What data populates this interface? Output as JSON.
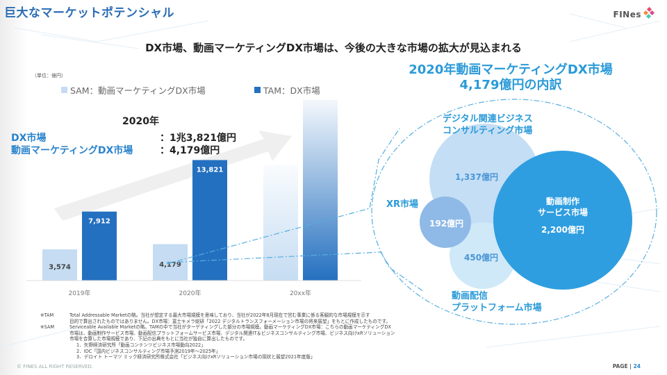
{
  "page": {
    "title": "巨大なマーケットポテンシャル",
    "logo_text": "FINes",
    "headline": "DX市場、動画マーケティングDX市場は、今後の大きな市場の拡大が見込まれる",
    "unit": "（単位：億円）",
    "copyright": "© FINES ALL RIGHT RESERVED.",
    "page_label": "PAGE | ",
    "page_number": "24"
  },
  "summary": {
    "year": "2020年",
    "rows": [
      {
        "label": "DX市場",
        "value": "：1兆3,821億円"
      },
      {
        "label": "動画マーケティングDX市場",
        "value": "：4,179億円"
      }
    ]
  },
  "colors": {
    "sam": "#c5dcf2",
    "tam": "#2470c0",
    "accent": "#2a9ad8",
    "bubble_main": "#2f9ee0",
    "bubble_consulting": "#c4def5",
    "bubble_xr": "#8fb9e6",
    "bubble_platform": "#cfe9f8"
  },
  "chart_data": [
    {
      "type": "bar",
      "title": "",
      "xlabel": "",
      "ylabel": "億円",
      "categories": [
        "2019年",
        "2020年",
        "20xx年"
      ],
      "series": [
        {
          "name": "SAM：動画マーケティングDX市場",
          "values": [
            3574,
            4179,
            null
          ],
          "labels": [
            "3,574",
            "4,179",
            ""
          ]
        },
        {
          "name": "TAM：DX市場",
          "values": [
            7912,
            13821,
            null
          ],
          "labels": [
            "7,912",
            "13,821",
            ""
          ]
        }
      ],
      "projected_category": "20xx年",
      "ylim": [
        0,
        18000
      ],
      "grid": false,
      "legend": "top"
    },
    {
      "type": "bubble",
      "title": "2020年動画マーケティングDX市場 4,179億円の内訳",
      "title_lines": [
        "2020年動画マーケティングDX市場",
        "4,179億円の内訳"
      ],
      "total": 4179,
      "segments": [
        {
          "name": "動画制作サービス市場",
          "name_lines": [
            "動画制作",
            "サービス市場"
          ],
          "value": 2200,
          "label": "2,200億円"
        },
        {
          "name": "デジタル関連ビジネスコンサルティング市場",
          "name_lines": [
            "デジタル関連ビジネス",
            "コンサルティング市場"
          ],
          "value": 1337,
          "label": "1,337億円"
        },
        {
          "name": "動画配信プラットフォーム市場",
          "name_lines": [
            "動画配信",
            "プラットフォーム市場"
          ],
          "value": 450,
          "label": "450億円"
        },
        {
          "name": "XR市場",
          "name_lines": [
            "XR市場"
          ],
          "value": 192,
          "label": "192億円"
        }
      ]
    }
  ],
  "notes": {
    "tam_tag": "※TAM",
    "tam_lines": [
      "Total Addressable Marketの略。当社が想定する最大市場規模を意味しており、当社が2022年8月現在で営む事業に係る客観的な市場規模を示す",
      "目的で算出されたものではありません。DX市場：富士キメラ総研「2022 デジタルトランスフォーメーション市場の将来展望」をもとに作成したものです。"
    ],
    "sam_tag": "※SAM",
    "sam_lines": [
      "Serviceable Available Marketの略。TAMの中で当社がターゲティングした部分の市場規模。動画マーケティングDX市場：こちらの動画マーケティングDX",
      "市場は、動画制作サービス市場、動画配信プラットフォームサービス市場、デジタル関連IT＆ビジネスコンサルティング市場、ビジネス向けxRソリューション",
      "市場を合算した市場規模であり、下記の出典をもとに当社が独自に算出したものです。"
    ],
    "sources": [
      "1．矢野経済研究所「動画コンテンツビジネス市場動向2022」",
      "2．IDC「国内ビジネスコンサルティング市場予測2019年～2025年」",
      "3．デロイト トーマツ ミック経済研究所株式会社「ビジネス向けxRソリューション市場の現状と展望2021年度版」"
    ]
  }
}
